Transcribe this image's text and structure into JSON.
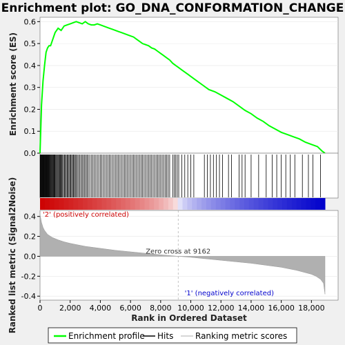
{
  "chart_data": {
    "type": "line",
    "title": "Enrichment plot: GO_DNA_CONFORMATION_CHANGE",
    "es_panel": {
      "ylabel": "Enrichment score (ES)",
      "ylim": [
        0.0,
        0.62
      ],
      "yticks": [
        "0.0",
        "0.1",
        "0.2",
        "0.3",
        "0.4",
        "0.5",
        "0.6"
      ],
      "line_color": "#00ff00",
      "series": [
        {
          "name": "Enrichment profile",
          "x": [
            0,
            100,
            200,
            300,
            400,
            500,
            600,
            700,
            800,
            900,
            1000,
            1200,
            1400,
            1600,
            1800,
            2000,
            2200,
            2400,
            2600,
            2800,
            3000,
            3200,
            3400,
            3600,
            3800,
            4000,
            4200,
            4400,
            4600,
            4800,
            5000,
            5200,
            5400,
            5600,
            5800,
            6000,
            6200,
            6400,
            6600,
            6800,
            7000,
            7200,
            7400,
            7600,
            7800,
            8000,
            8200,
            8400,
            8600,
            8800,
            9000,
            9200,
            9400,
            9600,
            9800,
            10000,
            10400,
            10800,
            11200,
            11600,
            12000,
            12400,
            12800,
            13200,
            13600,
            14000,
            14400,
            14800,
            15200,
            15600,
            16000,
            16400,
            16800,
            17200,
            17600,
            18000,
            18400,
            18700,
            18900
          ],
          "y": [
            0.0,
            0.22,
            0.33,
            0.4,
            0.46,
            0.48,
            0.49,
            0.49,
            0.51,
            0.53,
            0.55,
            0.57,
            0.56,
            0.58,
            0.585,
            0.59,
            0.595,
            0.6,
            0.595,
            0.59,
            0.6,
            0.59,
            0.585,
            0.585,
            0.59,
            0.585,
            0.58,
            0.575,
            0.57,
            0.565,
            0.56,
            0.555,
            0.55,
            0.545,
            0.54,
            0.535,
            0.53,
            0.52,
            0.51,
            0.5,
            0.495,
            0.49,
            0.48,
            0.475,
            0.465,
            0.455,
            0.445,
            0.435,
            0.425,
            0.41,
            0.4,
            0.39,
            0.38,
            0.37,
            0.36,
            0.35,
            0.33,
            0.31,
            0.29,
            0.28,
            0.265,
            0.25,
            0.235,
            0.215,
            0.195,
            0.18,
            0.16,
            0.145,
            0.125,
            0.11,
            0.095,
            0.085,
            0.075,
            0.065,
            0.05,
            0.04,
            0.03,
            0.01,
            0.0
          ]
        }
      ]
    },
    "hits_panel": {
      "legend_label": "Hits",
      "hit_positions": [
        10,
        30,
        60,
        90,
        120,
        150,
        180,
        210,
        240,
        270,
        300,
        330,
        360,
        390,
        420,
        450,
        480,
        510,
        540,
        570,
        600,
        640,
        680,
        720,
        760,
        800,
        840,
        880,
        920,
        960,
        1000,
        1050,
        1100,
        1150,
        1200,
        1250,
        1300,
        1350,
        1400,
        1450,
        1500,
        1560,
        1620,
        1680,
        1740,
        1800,
        1860,
        1920,
        1980,
        2040,
        2100,
        2160,
        2220,
        2280,
        2340,
        2400,
        2480,
        2560,
        2640,
        2720,
        2800,
        2880,
        2960,
        3040,
        3120,
        3200,
        3300,
        3400,
        3500,
        3600,
        3700,
        3800,
        3900,
        4000,
        4100,
        4200,
        4300,
        4400,
        4500,
        4600,
        4700,
        4800,
        4900,
        5000,
        5100,
        5200,
        5300,
        5400,
        5500,
        5600,
        5700,
        5800,
        5900,
        6000,
        6100,
        6200,
        6300,
        6400,
        6500,
        6600,
        6700,
        6800,
        6900,
        7000,
        7100,
        7200,
        7300,
        7400,
        7500,
        7600,
        7700,
        7800,
        7900,
        8000,
        8100,
        8200,
        8300,
        8400,
        8500,
        8600,
        8800,
        8900,
        9000,
        9100,
        9200,
        9400,
        9600,
        9800,
        10000,
        10200,
        10900,
        11100,
        11300,
        11500,
        11700,
        11900,
        12100,
        12500,
        12700,
        13200,
        13400,
        13600,
        14000,
        14500,
        15000,
        15400,
        15700,
        16000,
        16300,
        16600,
        16900,
        17400,
        17800,
        18100,
        18600
      ]
    },
    "ranking_panel": {
      "ylabel": "Ranked list metric (Signal2Noise)",
      "ylim": [
        -0.44,
        0.46
      ],
      "yticks": [
        "-0.4",
        "-0.2",
        "0.0",
        "0.2",
        "0.4"
      ],
      "legend_label": "Ranking metric scores",
      "curve_x": [
        0,
        100,
        200,
        300,
        500,
        800,
        1200,
        1600,
        2000,
        2500,
        3000,
        4000,
        5000,
        6000,
        7000,
        8000,
        9162,
        10000,
        11000,
        12000,
        13000,
        14000,
        15000,
        16000,
        16500,
        17000,
        17500,
        18000,
        18300,
        18600,
        18800,
        18900
      ],
      "curve_y": [
        0.42,
        0.34,
        0.29,
        0.26,
        0.22,
        0.19,
        0.165,
        0.145,
        0.13,
        0.115,
        0.1,
        0.08,
        0.06,
        0.045,
        0.03,
        0.015,
        0.0,
        -0.01,
        -0.025,
        -0.04,
        -0.055,
        -0.07,
        -0.09,
        -0.11,
        -0.125,
        -0.14,
        -0.16,
        -0.18,
        -0.2,
        -0.23,
        -0.27,
        -0.38
      ],
      "zero_cross_label": "Zero cross at 9162",
      "zero_cross": 9162,
      "positive_label": "'2' (positively correlated)",
      "negative_label": "'1' (negatively correlated)",
      "positive_color": "#cc0000",
      "negative_color": "#0000cc"
    },
    "xlabel": "Rank in Ordered Dataset",
    "xlim": [
      0,
      19000
    ],
    "xticks": [
      "0",
      "2,000",
      "4,000",
      "6,000",
      "8,000",
      "10,000",
      "12,000",
      "14,000",
      "16,000",
      "18,000"
    ],
    "xtick_values": [
      0,
      2000,
      4000,
      6000,
      8000,
      10000,
      12000,
      14000,
      16000,
      18000
    ],
    "legend": {
      "placement": "bottom",
      "entries": [
        "Enrichment profile",
        "Hits",
        "Ranking metric scores"
      ]
    }
  }
}
